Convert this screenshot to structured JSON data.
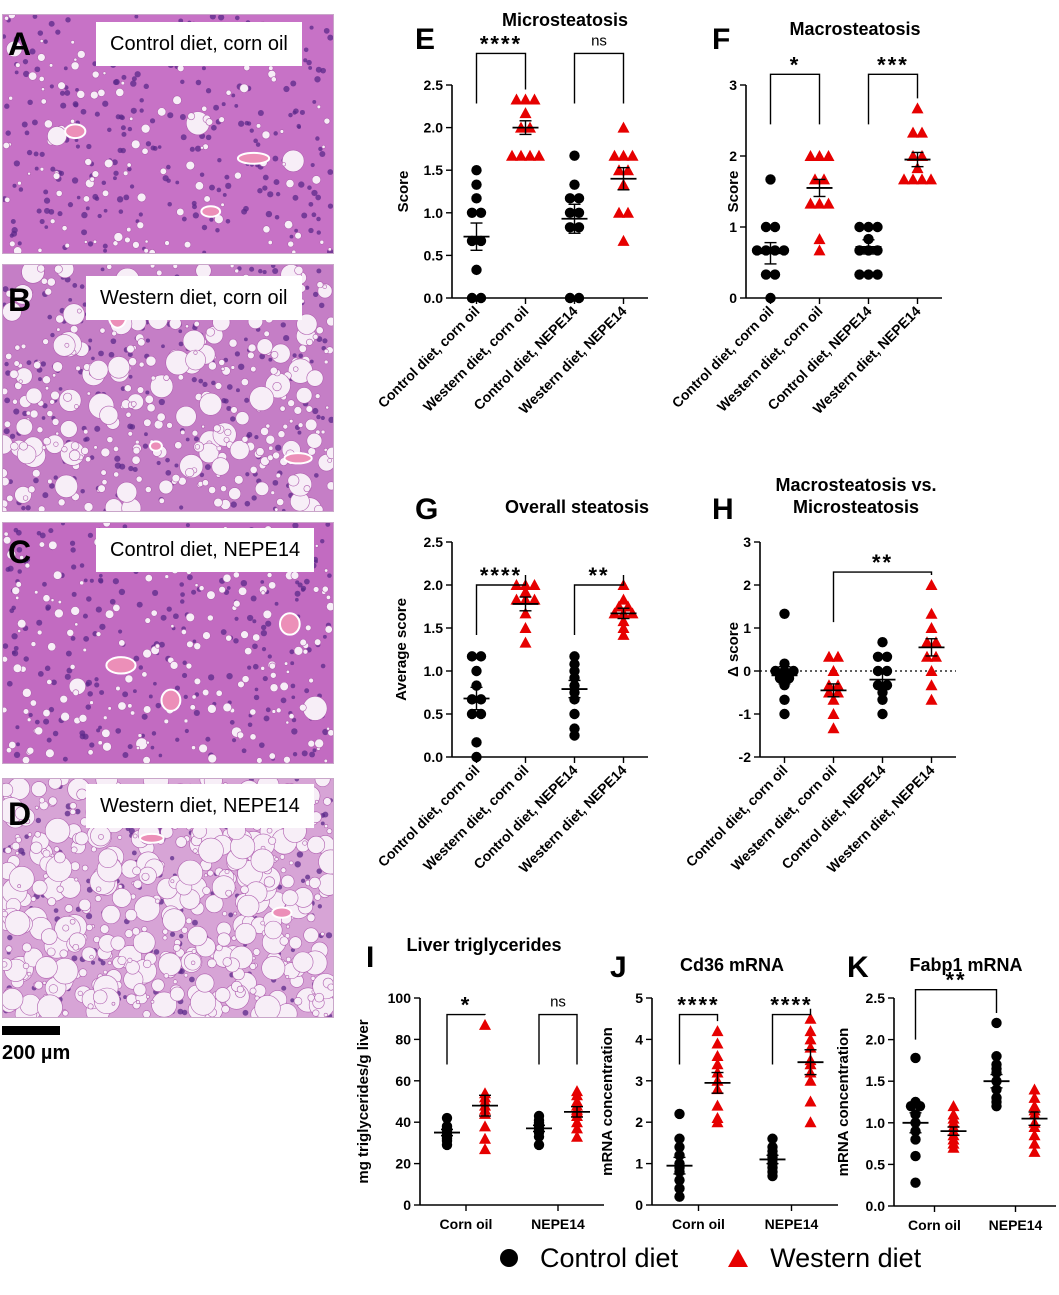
{
  "figure": {
    "histology": [
      {
        "letter": "A",
        "caption": "Control diet, corn oil"
      },
      {
        "letter": "B",
        "caption": "Western diet, corn oil"
      },
      {
        "letter": "C",
        "caption": "Control diet, NEPE14"
      },
      {
        "letter": "D",
        "caption": "Western diet, NEPE14"
      }
    ],
    "scale_bar_label": "200 µm",
    "legend": {
      "control": "Control diet",
      "western": "Western diet"
    },
    "colors": {
      "control": "#000000",
      "western": "#e60000",
      "he_stain": "#b85cb8"
    }
  },
  "chart_data": [
    {
      "panel": "E",
      "type": "scatter",
      "title": "Microsteatosis",
      "ylabel": "Score",
      "ylim": [
        0,
        2.5
      ],
      "yticks": [
        "0.0",
        "0.5",
        "1.0",
        "1.5",
        "2.0",
        "2.5"
      ],
      "categories": [
        "Control diet, corn oil",
        "Western diet, corn oil",
        "Control diet, NEPE14",
        "Western diet, NEPE14"
      ],
      "groups": [
        {
          "diet": "control",
          "mean": 0.72,
          "sem": 0.16,
          "points": [
            0,
            0,
            0.33,
            0.67,
            0.67,
            1.0,
            1.0,
            1.17,
            1.33,
            1.5
          ]
        },
        {
          "diet": "western",
          "mean": 2.0,
          "sem": 0.08,
          "points": [
            1.67,
            1.67,
            1.67,
            1.67,
            2.0,
            2.0,
            2.17,
            2.33,
            2.33,
            2.33
          ]
        },
        {
          "diet": "control",
          "mean": 0.93,
          "sem": 0.17,
          "points": [
            0,
            0,
            0.83,
            0.83,
            1.0,
            1.0,
            1.17,
            1.17,
            1.33,
            1.67
          ]
        },
        {
          "diet": "western",
          "mean": 1.4,
          "sem": 0.13,
          "points": [
            0.67,
            1.0,
            1.0,
            1.33,
            1.5,
            1.5,
            1.67,
            1.67,
            1.67,
            2.0
          ]
        }
      ],
      "comparisons": [
        {
          "from": 0,
          "to": 1,
          "label": "****",
          "y": 2.87
        },
        {
          "from": 2,
          "to": 3,
          "label": "ns",
          "y": 2.87
        }
      ]
    },
    {
      "panel": "F",
      "type": "scatter",
      "title": "Macrosteatosis",
      "ylabel": "Score",
      "ylim": [
        0,
        3
      ],
      "yticks": [
        "0",
        "1",
        "2",
        "3"
      ],
      "categories": [
        "Control diet, corn oil",
        "Western diet, corn oil",
        "Control diet, NEPE14",
        "Western diet, NEPE14"
      ],
      "groups": [
        {
          "diet": "control",
          "mean": 0.63,
          "sem": 0.15,
          "points": [
            0,
            0.33,
            0.33,
            0.67,
            0.67,
            0.67,
            0.67,
            1.0,
            1.0,
            1.67
          ]
        },
        {
          "diet": "western",
          "mean": 1.55,
          "sem": 0.12,
          "points": [
            0.67,
            0.83,
            1.33,
            1.33,
            1.33,
            1.67,
            1.67,
            2.0,
            2.0,
            2.0
          ]
        },
        {
          "diet": "control",
          "mean": 0.72,
          "sem": 0.1,
          "points": [
            0.33,
            0.33,
            0.33,
            0.67,
            0.67,
            0.67,
            0.83,
            1.0,
            1.0,
            1.0
          ]
        },
        {
          "diet": "western",
          "mean": 1.95,
          "sem": 0.1,
          "points": [
            1.67,
            1.67,
            1.67,
            1.67,
            1.83,
            2.0,
            2.0,
            2.33,
            2.33,
            2.67
          ]
        }
      ],
      "comparisons": [
        {
          "from": 0,
          "to": 1,
          "label": "*",
          "y": 3.15
        },
        {
          "from": 2,
          "to": 3,
          "label": "***",
          "y": 3.15
        }
      ]
    },
    {
      "panel": "G",
      "type": "scatter",
      "title": "Overall steatosis",
      "ylabel": "Average score",
      "ylim": [
        0,
        2.5
      ],
      "yticks": [
        "0.0",
        "0.5",
        "1.0",
        "1.5",
        "2.0",
        "2.5"
      ],
      "categories": [
        "Control diet, corn oil",
        "Western diet, corn oil",
        "Control diet, NEPE14",
        "Western diet, NEPE14"
      ],
      "groups": [
        {
          "diet": "control",
          "mean": 0.68,
          "sem": 0.13,
          "points": [
            0,
            0.17,
            0.5,
            0.5,
            0.67,
            0.67,
            0.83,
            1.0,
            1.17,
            1.17
          ]
        },
        {
          "diet": "western",
          "mean": 1.78,
          "sem": 0.08,
          "points": [
            1.33,
            1.5,
            1.67,
            1.83,
            1.83,
            1.83,
            1.92,
            2.0,
            2.0,
            2.0
          ]
        },
        {
          "diet": "control",
          "mean": 0.79,
          "sem": 0.1,
          "points": [
            0.25,
            0.33,
            0.5,
            0.67,
            0.75,
            0.83,
            0.92,
            1.0,
            1.08,
            1.17
          ]
        },
        {
          "diet": "western",
          "mean": 1.67,
          "sem": 0.06,
          "points": [
            1.42,
            1.5,
            1.58,
            1.67,
            1.67,
            1.67,
            1.75,
            1.75,
            1.83,
            2.0
          ]
        }
      ],
      "comparisons": [
        {
          "from": 0,
          "to": 1,
          "label": "****",
          "y": 2.0
        },
        {
          "from": 2,
          "to": 3,
          "label": "**",
          "y": 2.0
        }
      ]
    },
    {
      "panel": "H",
      "type": "scatter",
      "title": "Macrosteatosis vs. Microsteatosis",
      "ylabel": "Δ score",
      "ylim": [
        -2,
        3
      ],
      "yticks": [
        "-2",
        "-1",
        "0",
        "1",
        "2",
        "3"
      ],
      "reference_line": 0,
      "categories": [
        "Control diet, corn oil",
        "Western diet, corn oil",
        "Control diet, NEPE14",
        "Western diet, NEPE14"
      ],
      "groups": [
        {
          "diet": "control",
          "mean": -0.1,
          "sem": 0.2,
          "points": [
            -1.0,
            -0.67,
            -0.33,
            -0.17,
            -0.17,
            0,
            0,
            0,
            0.17,
            1.33
          ]
        },
        {
          "diet": "western",
          "mean": -0.45,
          "sem": 0.15,
          "points": [
            -1.33,
            -1.0,
            -0.67,
            -0.5,
            -0.5,
            -0.33,
            -0.33,
            0,
            0.33,
            0.33
          ]
        },
        {
          "diet": "control",
          "mean": -0.2,
          "sem": 0.15,
          "points": [
            -1.0,
            -0.67,
            -0.5,
            -0.33,
            -0.33,
            0,
            0,
            0.33,
            0.33,
            0.67
          ]
        },
        {
          "diet": "western",
          "mean": 0.55,
          "sem": 0.2,
          "points": [
            -0.67,
            -0.33,
            0,
            0.33,
            0.33,
            0.67,
            0.67,
            1.0,
            1.33,
            2.0
          ]
        }
      ],
      "comparisons": [
        {
          "from": 1,
          "to": 3,
          "label": "**",
          "y": 2.3
        }
      ]
    },
    {
      "panel": "I",
      "type": "scatter",
      "title": "Liver triglycerides",
      "ylabel": "mg triglycerides/g liver",
      "ylim": [
        0,
        100
      ],
      "yticks": [
        "0",
        "20",
        "40",
        "60",
        "80",
        "100"
      ],
      "categories": [
        "Corn oil",
        "NEPE14"
      ],
      "groups": [
        {
          "category": 0,
          "diet": "control",
          "mean": 35,
          "sem": 1.5,
          "points": [
            29,
            31,
            32,
            33,
            34,
            35,
            36,
            37,
            38,
            42
          ]
        },
        {
          "category": 0,
          "diet": "western",
          "mean": 48,
          "sem": 5,
          "points": [
            27,
            32,
            38,
            44,
            46,
            48,
            50,
            52,
            54,
            87
          ]
        },
        {
          "category": 1,
          "diet": "control",
          "mean": 37,
          "sem": 1.5,
          "points": [
            29,
            33,
            35,
            36,
            37,
            38,
            39,
            40,
            41,
            43
          ]
        },
        {
          "category": 1,
          "diet": "western",
          "mean": 45,
          "sem": 2.5,
          "points": [
            33,
            37,
            40,
            43,
            45,
            46,
            48,
            50,
            53,
            55
          ]
        }
      ],
      "comparisons": [
        {
          "from": 0,
          "to": 1,
          "label": "*",
          "y": 92
        },
        {
          "from": 2,
          "to": 3,
          "label": "ns",
          "y": 92
        }
      ]
    },
    {
      "panel": "J",
      "type": "scatter",
      "title": "Cd36 mRNA",
      "ylabel": "mRNA concentration",
      "ylim": [
        0,
        5
      ],
      "yticks": [
        "0",
        "1",
        "2",
        "3",
        "4",
        "5"
      ],
      "categories": [
        "Corn oil",
        "NEPE14"
      ],
      "groups": [
        {
          "category": 0,
          "diet": "control",
          "mean": 0.95,
          "sem": 0.2,
          "points": [
            0.2,
            0.4,
            0.6,
            0.8,
            0.9,
            1.0,
            1.2,
            1.4,
            1.6,
            2.2
          ]
        },
        {
          "category": 0,
          "diet": "western",
          "mean": 2.95,
          "sem": 0.25,
          "points": [
            2.0,
            2.1,
            2.4,
            2.8,
            3.0,
            3.2,
            3.4,
            3.6,
            3.9,
            4.2
          ]
        },
        {
          "category": 1,
          "diet": "control",
          "mean": 1.1,
          "sem": 0.1,
          "points": [
            0.7,
            0.8,
            0.9,
            1.0,
            1.1,
            1.15,
            1.2,
            1.3,
            1.4,
            1.6
          ]
        },
        {
          "category": 1,
          "diet": "western",
          "mean": 3.45,
          "sem": 0.3,
          "points": [
            2.0,
            2.5,
            3.0,
            3.2,
            3.4,
            3.5,
            3.8,
            4.0,
            4.2,
            4.5
          ]
        }
      ],
      "comparisons": [
        {
          "from": 0,
          "to": 1,
          "label": "****",
          "y": 4.6
        },
        {
          "from": 2,
          "to": 3,
          "label": "****",
          "y": 4.6
        }
      ]
    },
    {
      "panel": "K",
      "type": "scatter",
      "title": "Fabp1 mRNA",
      "ylabel": "mRNA concentration",
      "ylim": [
        0,
        2.5
      ],
      "yticks": [
        "0.0",
        "0.5",
        "1.0",
        "1.5",
        "2.0",
        "2.5"
      ],
      "categories": [
        "Corn oil",
        "NEPE14"
      ],
      "groups": [
        {
          "category": 0,
          "diet": "control",
          "mean": 1.0,
          "sem": 0.12,
          "points": [
            0.28,
            0.6,
            0.8,
            0.9,
            1.0,
            1.1,
            1.2,
            1.2,
            1.25,
            1.78
          ]
        },
        {
          "category": 0,
          "diet": "western",
          "mean": 0.9,
          "sem": 0.05,
          "points": [
            0.7,
            0.75,
            0.8,
            0.85,
            0.9,
            0.95,
            1.0,
            1.05,
            1.1,
            1.2
          ]
        },
        {
          "category": 1,
          "diet": "control",
          "mean": 1.5,
          "sem": 0.08,
          "points": [
            1.2,
            1.25,
            1.3,
            1.4,
            1.5,
            1.6,
            1.65,
            1.7,
            1.8,
            2.2
          ]
        },
        {
          "category": 1,
          "diet": "western",
          "mean": 1.05,
          "sem": 0.08,
          "points": [
            0.65,
            0.75,
            0.85,
            0.95,
            1.0,
            1.1,
            1.15,
            1.2,
            1.3,
            1.4
          ]
        }
      ],
      "comparisons": [
        {
          "from": 0,
          "to": 2,
          "label": "**",
          "y": 2.6
        }
      ]
    }
  ]
}
